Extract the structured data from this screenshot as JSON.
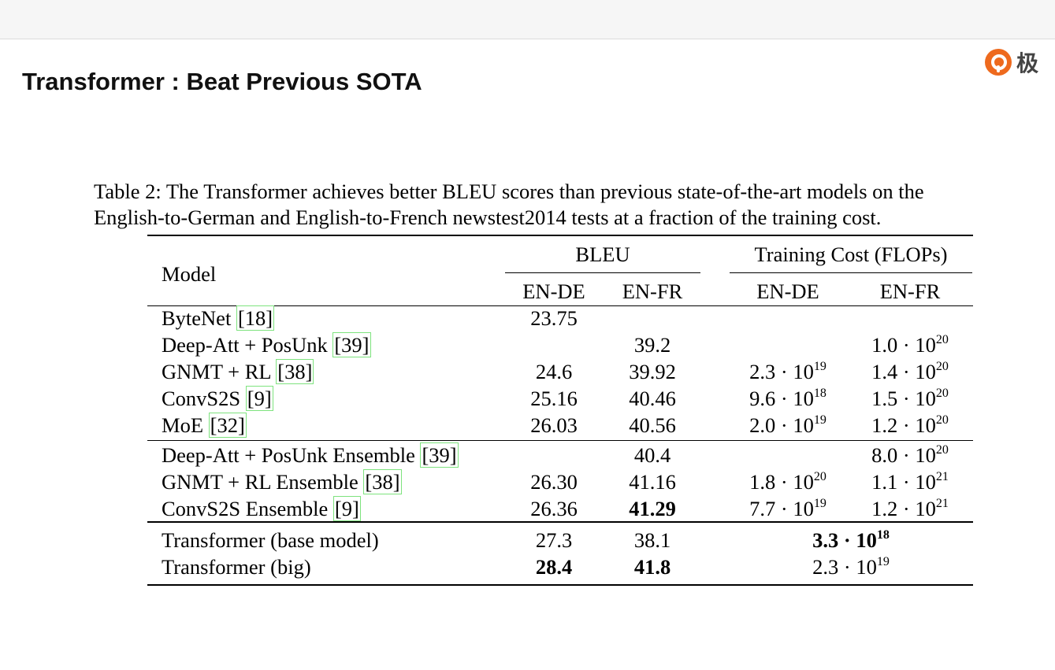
{
  "title": "Transformer : Beat Previous SOTA",
  "logo_text": "极",
  "caption_lines": [
    "Table 2: The Transformer achieves better BLEU scores than previous state-of-the-art models on the",
    "English-to-German and English-to-French newstest2014 tests at a fraction of the training cost."
  ],
  "table": {
    "model_header": "Model",
    "group_bleu": "BLEU",
    "group_cost": "Training Cost (FLOPs)",
    "subheaders": [
      "EN-DE",
      "EN-FR",
      "EN-DE",
      "EN-FR"
    ],
    "rows": [
      {
        "name": "ByteNet",
        "ref": "[18]",
        "bleu_de": "23.75",
        "bleu_fr": "",
        "cost_de": "",
        "cost_de_exp": "",
        "cost_fr": "",
        "cost_fr_exp": ""
      },
      {
        "name": "Deep-Att + PosUnk",
        "ref": "[39]",
        "bleu_de": "",
        "bleu_fr": "39.2",
        "cost_de": "",
        "cost_de_exp": "",
        "cost_fr": "1.0 · 10",
        "cost_fr_exp": "20"
      },
      {
        "name": "GNMT + RL",
        "ref": "[38]",
        "bleu_de": "24.6",
        "bleu_fr": "39.92",
        "cost_de": "2.3 · 10",
        "cost_de_exp": "19",
        "cost_fr": "1.4 · 10",
        "cost_fr_exp": "20"
      },
      {
        "name": "ConvS2S",
        "ref": "[9]",
        "bleu_de": "25.16",
        "bleu_fr": "40.46",
        "cost_de": "9.6 · 10",
        "cost_de_exp": "18",
        "cost_fr": "1.5 · 10",
        "cost_fr_exp": "20"
      },
      {
        "name": "MoE",
        "ref": "[32]",
        "bleu_de": "26.03",
        "bleu_fr": "40.56",
        "cost_de": "2.0 · 10",
        "cost_de_exp": "19",
        "cost_fr": "1.2 · 10",
        "cost_fr_exp": "20"
      },
      {
        "name": "Deep-Att + PosUnk Ensemble",
        "ref": "[39]",
        "bleu_de": "",
        "bleu_fr": "40.4",
        "cost_de": "",
        "cost_de_exp": "",
        "cost_fr": "8.0 · 10",
        "cost_fr_exp": "20"
      },
      {
        "name": "GNMT + RL Ensemble",
        "ref": "[38]",
        "bleu_de": "26.30",
        "bleu_fr": "41.16",
        "cost_de": "1.8 · 10",
        "cost_de_exp": "20",
        "cost_fr": "1.1 · 10",
        "cost_fr_exp": "21"
      },
      {
        "name": "ConvS2S Ensemble",
        "ref": "[9]",
        "bleu_de": "26.36",
        "bleu_fr": "41.29",
        "cost_de": "7.7 · 10",
        "cost_de_exp": "19",
        "cost_fr": "1.2 · 10",
        "cost_fr_exp": "21"
      },
      {
        "name": "Transformer (base model)",
        "ref": "",
        "bleu_de": "27.3",
        "bleu_fr": "38.1",
        "cost_span": "3.3 · 10",
        "cost_span_exp": "18"
      },
      {
        "name": "Transformer (big)",
        "ref": "",
        "bleu_de": "28.4",
        "bleu_fr": "41.8",
        "cost_span": "2.3 · 10",
        "cost_span_exp": "19"
      }
    ]
  }
}
